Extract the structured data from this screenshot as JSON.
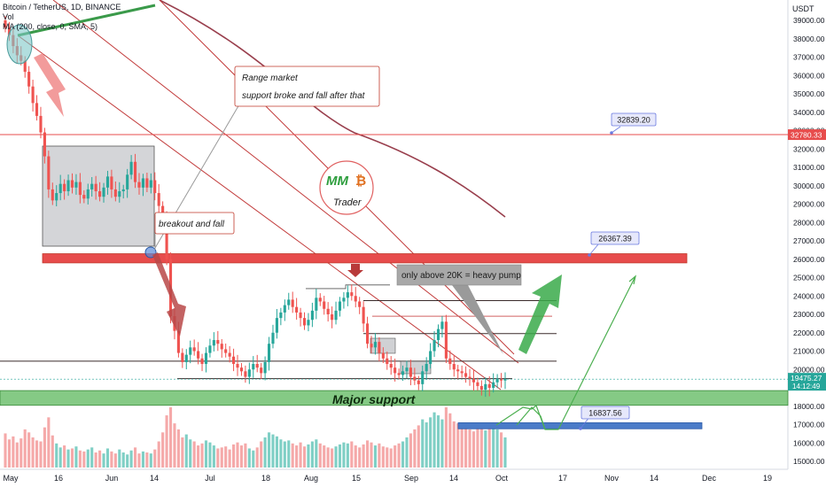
{
  "header": {
    "symbol": "Bitcoin / TetherUS, 1D, BINANCE",
    "vol_label": "Vol",
    "ma_label": "MA (200, close, 0, SMA, 5)"
  },
  "colors": {
    "up": "#26a69a",
    "down": "#ef5350",
    "vol_up": "#7fcfc5",
    "vol_down": "#f5a9a9",
    "resistance": "#e74c4c",
    "support": "#5cb85c",
    "target_zone": "#4a7bc8",
    "ma_line": "#8e2a3a",
    "text": "#131722"
  },
  "chart_data": {
    "type": "candlestick",
    "title": "Bitcoin / TetherUS, 1D, BINANCE",
    "y_axis": {
      "label": "USDT",
      "ylim": [
        14700,
        40000
      ],
      "scale": "linear",
      "ticks": [
        39000,
        38000,
        37000,
        36000,
        35000,
        34000,
        33000,
        32000,
        31000,
        30000,
        29000,
        28000,
        27000,
        26000,
        25000,
        24000,
        23000,
        22000,
        21000,
        20000,
        18000,
        17000,
        16000,
        15000
      ]
    },
    "x_axis": {
      "ticks": [
        "May",
        "16",
        "Jun",
        "14",
        "Jul",
        "18",
        "Aug",
        "15",
        "Sep",
        "14",
        "Oct",
        "17",
        "Nov",
        "14",
        "Dec",
        "19"
      ]
    },
    "price_labels": [
      {
        "value": "32780.33",
        "color": "#e74c4c"
      },
      {
        "value": "19475.27",
        "sub": "14:12:49",
        "color": "#26a69a"
      }
    ],
    "close_series": [
      38600,
      38200,
      37600,
      37100,
      36800,
      36200,
      35400,
      34500,
      33800,
      32900,
      31600,
      29800,
      29200,
      29600,
      30100,
      29700,
      30300,
      29900,
      30200,
      29500,
      29300,
      29800,
      30100,
      29700,
      29400,
      29900,
      30500,
      29800,
      29400,
      29700,
      29800,
      30600,
      31300,
      30200,
      29900,
      30400,
      29900,
      30300,
      29600,
      28900,
      28300,
      26000,
      22900,
      22100,
      20900,
      20400,
      20800,
      21200,
      21000,
      20600,
      20300,
      20900,
      21300,
      21600,
      21400,
      21100,
      20900,
      20700,
      20300,
      20100,
      19900,
      19600,
      20000,
      20300,
      20100,
      19800,
      20400,
      21400,
      22000,
      22800,
      23100,
      23500,
      23800,
      23400,
      23100,
      22800,
      22400,
      22700,
      23200,
      23900,
      23700,
      23300,
      23000,
      22700,
      23200,
      23700,
      23900,
      24200,
      24000,
      23700,
      23400,
      22500,
      21400,
      21200,
      21500,
      20900,
      20600,
      20300,
      20100,
      19800,
      19700,
      19900,
      20100,
      19600,
      19400,
      19200,
      19900,
      20300,
      21000,
      21600,
      22200,
      22600,
      20600,
      20300,
      20000,
      19900,
      19800,
      19600,
      19500,
      19300,
      19100,
      18900,
      19200,
      19000,
      19300,
      19500,
      19400,
      19475
    ],
    "volume_series": [
      34,
      28,
      31,
      25,
      29,
      38,
      35,
      30,
      27,
      26,
      40,
      50,
      32,
      24,
      20,
      22,
      18,
      19,
      21,
      17,
      16,
      18,
      20,
      15,
      17,
      14,
      19,
      16,
      14,
      18,
      15,
      13,
      17,
      20,
      14,
      16,
      15,
      14,
      18,
      26,
      35,
      52,
      60,
      44,
      38,
      30,
      33,
      28,
      26,
      22,
      24,
      27,
      25,
      22,
      19,
      20,
      21,
      18,
      23,
      25,
      22,
      24,
      19,
      17,
      20,
      26,
      30,
      35,
      33,
      31,
      28,
      26,
      27,
      24,
      22,
      25,
      21,
      23,
      26,
      28,
      24,
      22,
      20,
      19,
      21,
      23,
      25,
      24,
      26,
      22,
      20,
      23,
      27,
      25,
      22,
      24,
      21,
      20,
      19,
      22,
      24,
      26,
      30,
      34,
      38,
      42,
      48,
      45,
      50,
      55,
      52,
      48,
      60,
      54,
      46,
      44,
      42,
      40,
      38,
      36,
      41,
      39,
      37,
      42,
      40,
      38,
      35,
      30
    ],
    "levels": [
      {
        "name": "resistance_line",
        "value": 32780.33
      },
      {
        "name": "red_zone",
        "from": 25800,
        "to": 26300
      },
      {
        "name": "green_zone",
        "from": 18050,
        "to": 18850
      },
      {
        "name": "blue_zone",
        "from": 16770,
        "to": 17100
      }
    ]
  },
  "annotations": {
    "range_market_line1": "Range market",
    "range_market_line2": "support broke and fall after that",
    "breakout": "breakout and fall",
    "major_support": "Major support",
    "pump": "only above 20K = heavy pump",
    "label_32839": "32839.20",
    "label_26367": "26367.39",
    "label_16837": "16837.56",
    "logo_letters": "MM",
    "logo_btc": "₿",
    "logo_word": "Trader"
  }
}
